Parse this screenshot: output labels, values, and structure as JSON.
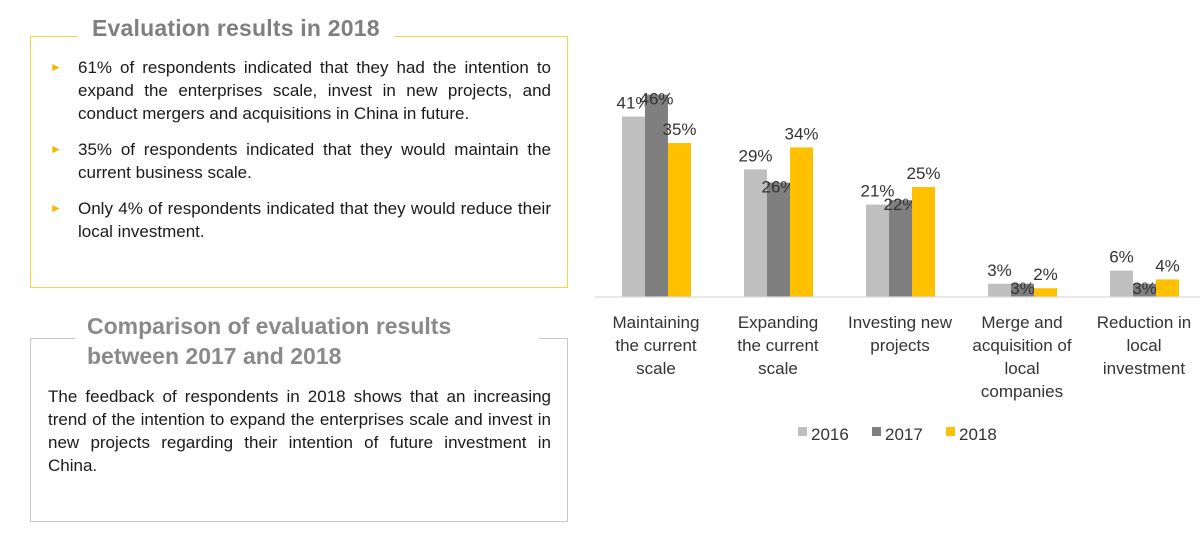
{
  "section1": {
    "title": "Evaluation results in 2018",
    "bullets": [
      "61% of respondents indicated that they had the intention to expand the enterprises scale, invest in new projects, and conduct mergers and acquisitions in China in future.",
      "35% of respondents indicated that they would maintain the current business scale.",
      "Only 4% of respondents indicated that they would reduce their local investment."
    ]
  },
  "section2": {
    "title": "Comparison of evaluation results between 2017 and 2018",
    "text": "The feedback of respondents in 2018 shows that an increasing trend of the intention to expand the enterprises scale and invest in new projects regarding their intention of future investment in China."
  },
  "colors": {
    "accent": "#f2b600",
    "box1_border": "#f2d34a",
    "box2_border": "#c8c8c8"
  },
  "chart_data": {
    "type": "bar",
    "categories": [
      [
        "Maintaining",
        "the current",
        "scale"
      ],
      [
        "Expanding",
        "the current",
        "scale"
      ],
      [
        "Investing new",
        "projects"
      ],
      [
        "Merge and",
        "acquisition of",
        "local",
        "companies"
      ],
      [
        "Reduction in",
        "local",
        "investment"
      ]
    ],
    "series": [
      {
        "name": "2016",
        "color": "#bfbfbf",
        "values": [
          41,
          29,
          21,
          3,
          6
        ],
        "labels": [
          "41%",
          "29%",
          "21%",
          "3%",
          "6%"
        ]
      },
      {
        "name": "2017",
        "color": "#7f7f7f",
        "values": [
          46,
          26,
          22,
          3,
          3
        ],
        "labels": [
          "46%",
          "26%",
          "22%",
          "3%",
          "3%"
        ]
      },
      {
        "name": "2018",
        "color": "#ffc000",
        "values": [
          35,
          34,
          25,
          2,
          4
        ],
        "labels": [
          "35%",
          "34%",
          "25%",
          "2%",
          "4%"
        ]
      }
    ],
    "ylim": [
      0,
      50
    ],
    "legend_position": "bottom",
    "grid": false
  }
}
